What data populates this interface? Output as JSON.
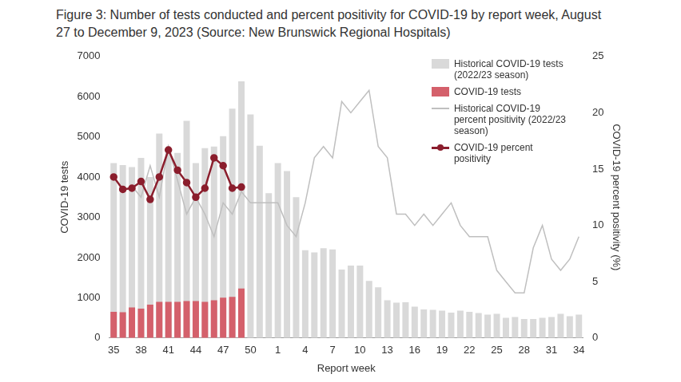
{
  "chart_data": {
    "type": "combo",
    "title": "Figure 3: Number of tests conducted and percent positivity for COVID-19 by report week, August 27 to December 9, 2023 (Source: New Brunswick Regional Hospitals)",
    "x_label": "Report week",
    "y_label": "COVID-19 tests",
    "y2_label": "COVID-19 percent positivity (%)",
    "categories": [
      "35",
      null,
      null,
      "38",
      null,
      null,
      "41",
      null,
      null,
      "44",
      null,
      null,
      "47",
      null,
      null,
      "50",
      null,
      null,
      "1",
      null,
      null,
      "4",
      null,
      null,
      "7",
      null,
      null,
      "10",
      null,
      null,
      "13",
      null,
      null,
      "16",
      null,
      null,
      "19",
      null,
      null,
      "22",
      null,
      null,
      "25",
      null,
      null,
      "28",
      null,
      null,
      "31",
      null,
      null,
      "34"
    ],
    "series": [
      {
        "name": "Historical COVID-19 tests (2022/23 season)",
        "type": "bar",
        "color": "#d9d9d9",
        "axis": "y",
        "values": [
          4350,
          4300,
          4250,
          4480,
          4000,
          5080,
          4650,
          4600,
          5400,
          4350,
          4720,
          4760,
          5020,
          5700,
          6380,
          5560,
          4780,
          3600,
          4350,
          4150,
          3500,
          2180,
          2130,
          2230,
          2200,
          1700,
          1800,
          1800,
          1420,
          1260,
          940,
          880,
          890,
          780,
          710,
          700,
          680,
          630,
          680,
          650,
          620,
          580,
          600,
          500,
          520,
          470,
          470,
          500,
          520,
          600,
          540,
          580
        ]
      },
      {
        "name": "COVID-19 tests",
        "type": "bar",
        "color": "#d4606b",
        "axis": "y",
        "values": [
          650,
          640,
          760,
          730,
          830,
          900,
          900,
          900,
          920,
          920,
          900,
          940,
          1000,
          1020,
          1230,
          null,
          null,
          null,
          null,
          null,
          null,
          null,
          null,
          null,
          null,
          null,
          null,
          null,
          null,
          null,
          null,
          null,
          null,
          null,
          null,
          null,
          null,
          null,
          null,
          null,
          null,
          null,
          null,
          null,
          null,
          null,
          null,
          null,
          null,
          null,
          null,
          null
        ]
      },
      {
        "name": "Historical COVID-19 percent positivity (2022/23 season)",
        "type": "line",
        "color": "#bfbfbf",
        "axis": "y2",
        "marker": "none",
        "line_style": "solid",
        "values": [
          14.5,
          13,
          13.5,
          12.5,
          15.3,
          12.5,
          17,
          14,
          11,
          12.5,
          11,
          9,
          12,
          11,
          13,
          12,
          12,
          12,
          12,
          10,
          9,
          12,
          16,
          17,
          16,
          21,
          20,
          21,
          22,
          17,
          16,
          11,
          11,
          10,
          11,
          10,
          11,
          12,
          10,
          9,
          9,
          9,
          6,
          5,
          4,
          4,
          8,
          10,
          7,
          6,
          7,
          9
        ]
      },
      {
        "name": "COVID-19 percent positivity",
        "type": "line",
        "color": "#8b1e2d",
        "axis": "y2",
        "marker": "circle",
        "line_style": "solid",
        "values": [
          14.3,
          13.2,
          13.3,
          13.9,
          12.3,
          14.3,
          16.7,
          14.9,
          13.8,
          12.5,
          13.3,
          16.0,
          15.3,
          13.3,
          13.4,
          null,
          null,
          null,
          null,
          null,
          null,
          null,
          null,
          null,
          null,
          null,
          null,
          null,
          null,
          null,
          null,
          null,
          null,
          null,
          null,
          null,
          null,
          null,
          null,
          null,
          null,
          null,
          null,
          null,
          null,
          null,
          null,
          null,
          null,
          null,
          null,
          null
        ]
      }
    ],
    "ylim": [
      0,
      7000
    ],
    "yticks": [
      0,
      1000,
      2000,
      3000,
      4000,
      5000,
      6000,
      7000
    ],
    "y2lim": [
      0,
      25
    ],
    "y2ticks": [
      0,
      5,
      10,
      15,
      20,
      25
    ],
    "grid": false,
    "legend": "upper right"
  }
}
